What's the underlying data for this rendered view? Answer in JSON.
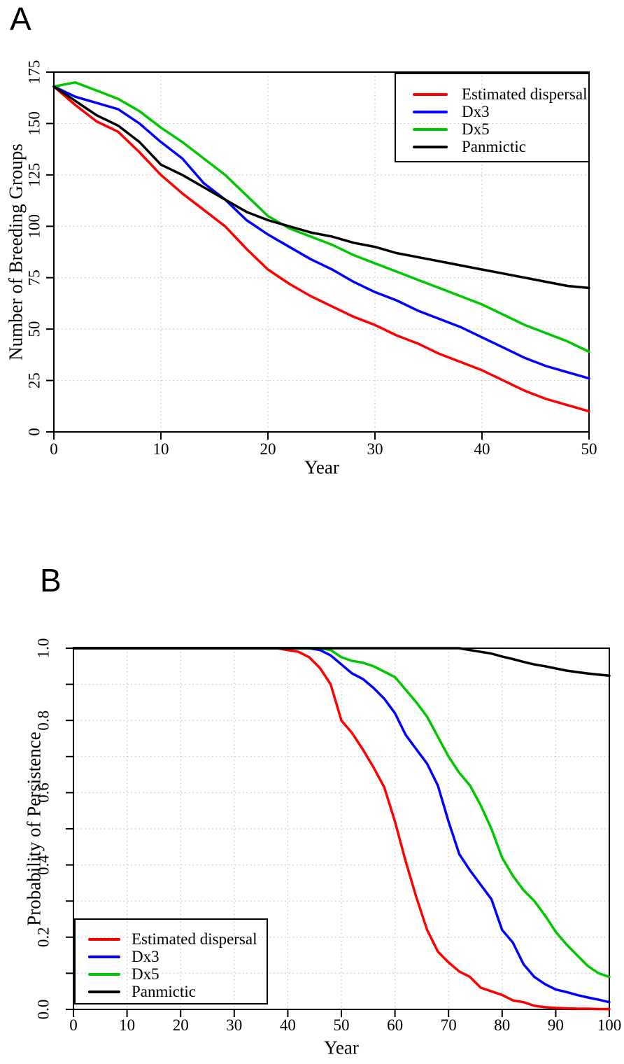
{
  "page": {
    "background": "#ffffff"
  },
  "colors": {
    "estimated_dispersal": "#ff0000",
    "dx3": "#0000ff",
    "dx5": "#00c800",
    "panmictic": "#000000",
    "grid": "#c9bfbf",
    "axis": "#000000"
  },
  "chart_data": [
    {
      "type": "line",
      "panel_label": "A",
      "xlabel": "Year",
      "ylabel": "Number of Breeding Groups",
      "xlim": [
        0,
        50
      ],
      "ylim": [
        0,
        175
      ],
      "grid": true,
      "legend_position": "top-right",
      "x_ticks": [
        {
          "v": 0,
          "label": "0"
        },
        {
          "v": 10,
          "label": "10"
        },
        {
          "v": 20,
          "label": "20"
        },
        {
          "v": 30,
          "label": "30"
        },
        {
          "v": 40,
          "label": "40"
        },
        {
          "v": 50,
          "label": "50"
        }
      ],
      "y_ticks": [
        {
          "v": 0,
          "label": "0"
        },
        {
          "v": 25,
          "label": "25"
        },
        {
          "v": 50,
          "label": "50"
        },
        {
          "v": 75,
          "label": "75"
        },
        {
          "v": 100,
          "label": "100"
        },
        {
          "v": 125,
          "label": "125"
        },
        {
          "v": 150,
          "label": "150"
        },
        {
          "v": 175,
          "label": "175"
        }
      ],
      "x": [
        0,
        2,
        4,
        6,
        8,
        10,
        12,
        14,
        16,
        18,
        20,
        22,
        24,
        26,
        28,
        30,
        32,
        34,
        36,
        38,
        40,
        42,
        44,
        46,
        48,
        50
      ],
      "series": [
        {
          "name": "Estimated dispersal",
          "color": "#ff0000",
          "values": [
            168,
            159,
            151,
            146,
            136,
            125,
            116,
            108,
            100,
            89,
            79,
            72,
            66,
            61,
            56,
            52,
            47,
            43,
            38,
            34,
            30,
            25,
            20,
            16,
            13,
            10
          ]
        },
        {
          "name": "Dx3",
          "color": "#0000ff",
          "values": [
            168,
            163,
            160,
            157,
            150,
            141,
            133,
            121,
            113,
            103,
            96,
            90,
            84,
            79,
            73,
            68,
            64,
            59,
            55,
            51,
            46,
            41,
            36,
            32,
            29,
            26
          ]
        },
        {
          "name": "Dx5",
          "color": "#00c800",
          "values": [
            168,
            170,
            166,
            162,
            156,
            148,
            141,
            133,
            125,
            115,
            105,
            99,
            95,
            91,
            86,
            82,
            78,
            74,
            70,
            66,
            62,
            57,
            52,
            48,
            44,
            39
          ]
        },
        {
          "name": "Panmictic",
          "color": "#000000",
          "values": [
            168,
            161,
            154,
            149,
            141,
            130,
            125,
            119,
            113,
            107,
            103,
            100,
            97,
            95,
            92,
            90,
            87,
            85,
            83,
            81,
            79,
            77,
            75,
            73,
            71,
            70
          ]
        }
      ]
    },
    {
      "type": "line",
      "panel_label": "B",
      "xlabel": "Year",
      "ylabel": "Probability of Persistence",
      "xlim": [
        0,
        100
      ],
      "ylim": [
        0,
        1.0
      ],
      "grid": true,
      "legend_position": "bottom-left",
      "x_ticks": [
        {
          "v": 0,
          "label": "0"
        },
        {
          "v": 10,
          "label": "10"
        },
        {
          "v": 20,
          "label": "20"
        },
        {
          "v": 30,
          "label": "30"
        },
        {
          "v": 40,
          "label": "40"
        },
        {
          "v": 50,
          "label": "50"
        },
        {
          "v": 60,
          "label": "60"
        },
        {
          "v": 70,
          "label": "70"
        },
        {
          "v": 80,
          "label": "80"
        },
        {
          "v": 90,
          "label": "90"
        },
        {
          "v": 100,
          "label": "100"
        }
      ],
      "y_ticks": [
        {
          "v": 0.0,
          "label": "0.0"
        },
        {
          "v": 0.1,
          "label": ""
        },
        {
          "v": 0.2,
          "label": "0.2"
        },
        {
          "v": 0.3,
          "label": ""
        },
        {
          "v": 0.4,
          "label": "0.4"
        },
        {
          "v": 0.5,
          "label": ""
        },
        {
          "v": 0.6,
          "label": "0.6"
        },
        {
          "v": 0.7,
          "label": ""
        },
        {
          "v": 0.8,
          "label": "0.8"
        },
        {
          "v": 0.9,
          "label": ""
        },
        {
          "v": 1.0,
          "label": "1.0"
        }
      ],
      "x": [
        0,
        2,
        4,
        6,
        8,
        10,
        12,
        14,
        16,
        18,
        20,
        22,
        24,
        26,
        28,
        30,
        32,
        34,
        36,
        38,
        40,
        42,
        44,
        46,
        48,
        50,
        52,
        54,
        56,
        58,
        60,
        62,
        64,
        66,
        68,
        70,
        72,
        74,
        76,
        78,
        80,
        82,
        84,
        86,
        88,
        90,
        92,
        94,
        96,
        98,
        100
      ],
      "series": [
        {
          "name": "Estimated dispersal",
          "color": "#ff0000",
          "values": [
            1,
            1,
            1,
            1,
            1,
            1,
            1,
            1,
            1,
            1,
            1,
            1,
            1,
            1,
            1,
            1,
            1,
            1,
            1,
            1,
            0.995,
            0.99,
            0.975,
            0.945,
            0.9,
            0.8,
            0.765,
            0.72,
            0.67,
            0.615,
            0.52,
            0.41,
            0.31,
            0.22,
            0.16,
            0.13,
            0.105,
            0.09,
            0.06,
            0.05,
            0.04,
            0.025,
            0.02,
            0.01,
            0.006,
            0.004,
            0.003,
            0.002,
            0.002,
            0.001,
            0.001
          ]
        },
        {
          "name": "Dx3",
          "color": "#0000ff",
          "values": [
            1,
            1,
            1,
            1,
            1,
            1,
            1,
            1,
            1,
            1,
            1,
            1,
            1,
            1,
            1,
            1,
            1,
            1,
            1,
            1,
            1,
            1,
            1,
            0.995,
            0.98,
            0.955,
            0.93,
            0.915,
            0.89,
            0.86,
            0.82,
            0.76,
            0.72,
            0.68,
            0.62,
            0.52,
            0.43,
            0.385,
            0.345,
            0.305,
            0.22,
            0.185,
            0.125,
            0.09,
            0.07,
            0.055,
            0.048,
            0.04,
            0.033,
            0.027,
            0.02
          ]
        },
        {
          "name": "Dx5",
          "color": "#00c800",
          "values": [
            1,
            1,
            1,
            1,
            1,
            1,
            1,
            1,
            1,
            1,
            1,
            1,
            1,
            1,
            1,
            1,
            1,
            1,
            1,
            1,
            1,
            1,
            1,
            1,
            0.995,
            0.975,
            0.965,
            0.96,
            0.95,
            0.935,
            0.92,
            0.885,
            0.85,
            0.81,
            0.755,
            0.7,
            0.655,
            0.62,
            0.565,
            0.5,
            0.42,
            0.37,
            0.33,
            0.3,
            0.26,
            0.215,
            0.18,
            0.15,
            0.12,
            0.1,
            0.09
          ]
        },
        {
          "name": "Panmictic",
          "color": "#000000",
          "values": [
            1,
            1,
            1,
            1,
            1,
            1,
            1,
            1,
            1,
            1,
            1,
            1,
            1,
            1,
            1,
            1,
            1,
            1,
            1,
            1,
            1,
            1,
            1,
            1,
            1,
            1,
            1,
            1,
            1,
            1,
            1,
            1,
            1,
            1,
            1,
            1,
            1,
            0.995,
            0.99,
            0.985,
            0.977,
            0.97,
            0.962,
            0.955,
            0.95,
            0.944,
            0.938,
            0.934,
            0.93,
            0.927,
            0.924
          ]
        }
      ]
    }
  ]
}
